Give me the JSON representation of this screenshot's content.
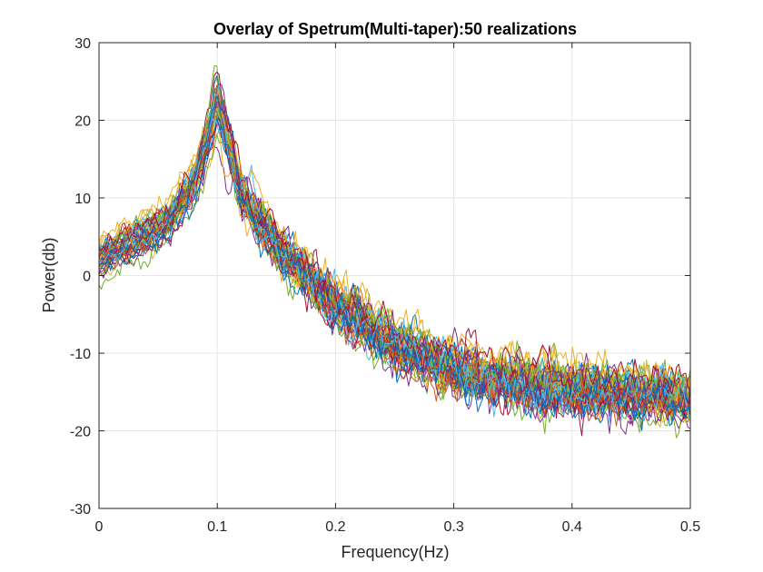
{
  "chart_data": {
    "type": "line",
    "title": "Overlay of Spetrum(Multi-taper):50 realizations",
    "xlabel": "Frequency(Hz)",
    "ylabel": "Power(db)",
    "xlim": [
      0,
      0.5
    ],
    "ylim": [
      -30,
      30
    ],
    "x_ticks": [
      "0",
      "0.1",
      "0.2",
      "0.3",
      "0.4",
      "0.5"
    ],
    "y_ticks": [
      "-30",
      "-20",
      "-10",
      "0",
      "10",
      "20",
      "30"
    ],
    "grid": true,
    "legend": "none",
    "series_count": 50,
    "series_colors": [
      "#0072BD",
      "#D95319",
      "#EDB120",
      "#7E2F8E",
      "#77AC30",
      "#4DBEEE",
      "#A2142F"
    ],
    "approx_mean_envelope": {
      "x": [
        0,
        0.02,
        0.04,
        0.06,
        0.08,
        0.09,
        0.1,
        0.11,
        0.12,
        0.15,
        0.2,
        0.25,
        0.3,
        0.35,
        0.4,
        0.45,
        0.5
      ],
      "y": [
        2.5,
        4,
        5.5,
        7.5,
        12,
        17,
        23,
        17,
        11,
        4,
        -3.5,
        -8.5,
        -12,
        -13.5,
        -14.5,
        -15,
        -15.5
      ]
    },
    "approx_spread_db": 2.5,
    "peak_frequency": 0.1,
    "peak_range": [
      21,
      29
    ]
  }
}
